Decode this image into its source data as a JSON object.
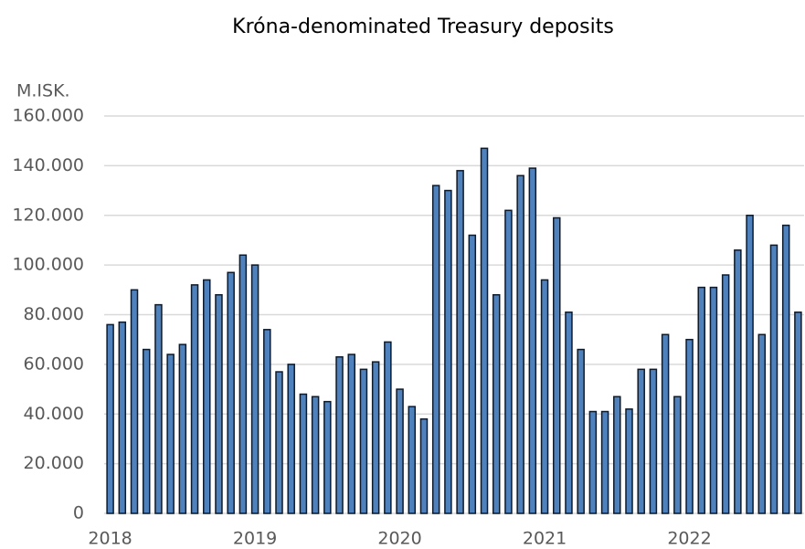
{
  "chart_data": {
    "type": "bar",
    "title": "Króna-denominated Treasury deposits",
    "y_axis_label": "M.ISK.",
    "categories": [
      "2018",
      null,
      null,
      null,
      null,
      null,
      null,
      null,
      null,
      null,
      null,
      null,
      "2019",
      null,
      null,
      null,
      null,
      null,
      null,
      null,
      null,
      null,
      null,
      null,
      "2020",
      null,
      null,
      null,
      null,
      null,
      null,
      null,
      null,
      null,
      null,
      null,
      "2021",
      null,
      null,
      null,
      null,
      null,
      null,
      null,
      null,
      null,
      null,
      null,
      "2022",
      null,
      null,
      null,
      null,
      null,
      null,
      null,
      null,
      null
    ],
    "values": [
      76000,
      77000,
      90000,
      66000,
      84000,
      64000,
      68000,
      92000,
      94000,
      88000,
      97000,
      104000,
      100000,
      74000,
      57000,
      60000,
      48000,
      47000,
      45000,
      63000,
      64000,
      58000,
      61000,
      69000,
      50000,
      43000,
      38000,
      132000,
      130000,
      138000,
      112000,
      147000,
      88000,
      122000,
      136000,
      139000,
      94000,
      119000,
      81000,
      66000,
      41000,
      41000,
      47000,
      42000,
      58000,
      58000,
      72000,
      47000,
      70000,
      91000,
      91000,
      96000,
      106000,
      120000,
      72000,
      108000,
      116000,
      81000
    ],
    "color": "#4f81bd",
    "ylim": [
      0,
      160000
    ],
    "yticks": [
      0,
      {
        "value": 20000,
        "label": "20.000"
      },
      {
        "value": 40000,
        "label": "40.000"
      },
      {
        "value": 60000,
        "label": "60.000"
      },
      {
        "value": 80000,
        "label": "80.000"
      },
      {
        "value": 100000,
        "label": "100.000"
      },
      {
        "value": 120000,
        "label": "120.000"
      },
      {
        "value": 140000,
        "label": "140.000"
      },
      {
        "value": 160000,
        "label": "160.000"
      }
    ],
    "grid": true
  }
}
